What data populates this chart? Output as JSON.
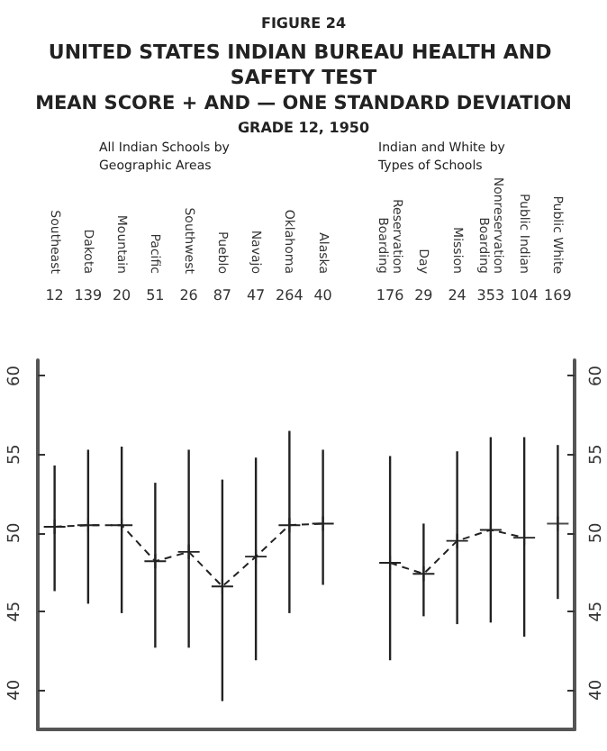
{
  "chart_data": {
    "type": "line",
    "title": "UNITED STATES INDIAN BUREAU HEALTH AND SAFETY TEST",
    "subtitle": "MEAN SCORE + AND — ONE STANDARD DEVIATION",
    "categories": [
      "Southeast",
      "Dakota",
      "Mountain",
      "Pacific",
      "Southwest",
      "Pueblo",
      "Navajo",
      "Oklahoma",
      "Alaska",
      null,
      "Reservation\nBoarding",
      "Day",
      "Mission",
      "Nonreservation\nBoarding",
      "Public Indian",
      "Public White"
    ],
    "series": [
      {
        "color": "#222222",
        "line_style": "dashed",
        "marker": "cross",
        "values": [
          50.4,
          50.5,
          50.5,
          48.2,
          48.8,
          46.6,
          48.5,
          50.5,
          50.6,
          null,
          null,
          null,
          null,
          null,
          null,
          null
        ],
        "errors": [
          [
            46.3,
            54.3
          ],
          [
            45.5,
            55.3
          ],
          [
            44.9,
            55.5
          ],
          [
            42.7,
            53.2
          ],
          [
            42.7,
            55.3
          ],
          [
            39.3,
            53.4
          ],
          [
            41.9,
            54.8
          ],
          [
            44.9,
            56.5
          ],
          [
            46.7,
            55.3
          ],
          null,
          null,
          null,
          null,
          null,
          null,
          null
        ]
      },
      {
        "color": "#222222",
        "line_style": "dashed",
        "marker": "cross",
        "values": [
          null,
          null,
          null,
          null,
          null,
          null,
          null,
          null,
          null,
          null,
          48.1,
          47.4,
          49.5,
          50.2,
          49.7,
          null
        ],
        "errors": [
          null,
          null,
          null,
          null,
          null,
          null,
          null,
          null,
          null,
          null,
          [
            41.9,
            54.9
          ],
          [
            44.7,
            50.6
          ],
          [
            44.2,
            55.2
          ],
          [
            44.3,
            56.1
          ],
          [
            43.4,
            56.1
          ],
          null
        ]
      },
      {
        "type": "scatter",
        "color": "#222222",
        "marker": "cross",
        "values": [
          null,
          null,
          null,
          null,
          null,
          null,
          null,
          null,
          null,
          null,
          null,
          null,
          null,
          null,
          null,
          50.6
        ],
        "errors": [
          null,
          null,
          null,
          null,
          null,
          null,
          null,
          null,
          null,
          null,
          null,
          null,
          null,
          null,
          null,
          [
            45.8,
            55.6
          ]
        ]
      }
    ],
    "ylim": [
      37.5,
      61
    ],
    "yticks": [
      40,
      45,
      50,
      55,
      60
    ],
    "y2lim": [
      37.5,
      61
    ],
    "y2ticks": [
      40,
      45,
      50,
      55,
      60
    ],
    "grid": false,
    "legend": false,
    "annotations": [
      "FIGURE 24",
      "GRADE 12, 1950",
      "All Indian Schools by\nGeographic Areas",
      "Indian and White by\nTypes of Schools",
      "12",
      "139",
      "20",
      "51",
      "26",
      "87",
      "47",
      "264",
      "40",
      "176",
      "29",
      "24",
      "353",
      "104",
      "169"
    ]
  }
}
